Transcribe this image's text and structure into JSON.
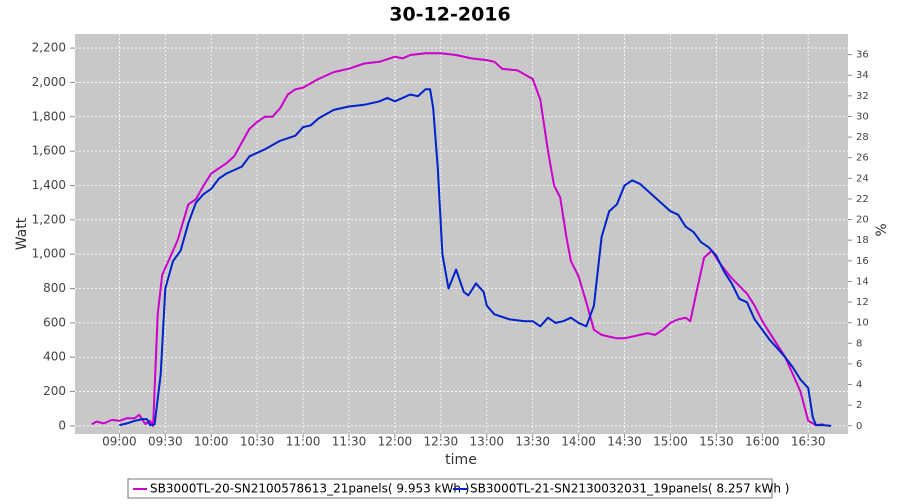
{
  "chart_data": {
    "type": "line",
    "title": "30-12-2016",
    "x_label": "time",
    "y_label": "Watt",
    "y2_label": "%",
    "xlim": [
      "08:31",
      "16:56"
    ],
    "xticks": [
      "09:00",
      "09:30",
      "10:00",
      "10:30",
      "11:00",
      "11:30",
      "12:00",
      "12:30",
      "13:00",
      "13:30",
      "14:00",
      "14:30",
      "15:00",
      "15:30",
      "16:00",
      "16:30"
    ],
    "ylim": [
      -47,
      2282
    ],
    "yticks": [
      0,
      200,
      400,
      600,
      800,
      {
        "value": 1000,
        "label": "1,000"
      },
      {
        "value": 1200,
        "label": "1,200"
      },
      {
        "value": 1400,
        "label": "1,400"
      },
      {
        "value": 1600,
        "label": "1,600"
      },
      {
        "value": 1800,
        "label": "1,800"
      },
      {
        "value": 2000,
        "label": "2,000"
      },
      {
        "value": 2200,
        "label": "2,200"
      }
    ],
    "y2lim": [
      -0.8,
      38
    ],
    "y2ticks": [
      0,
      2,
      4,
      6,
      8,
      10,
      12,
      14,
      16,
      18,
      20,
      22,
      24,
      26,
      28,
      30,
      32,
      34,
      36
    ],
    "grid": true,
    "legend": "bottom",
    "series": [
      {
        "name": "SB3000TL-20-SN2100578613_21panels( 9.953 kWh )",
        "color": "#cc00cc",
        "x": [
          "08:42",
          "08:45",
          "08:50",
          "08:55",
          "09:00",
          "09:05",
          "09:10",
          "09:13",
          "09:17",
          "09:20",
          "09:22",
          "09:25",
          "09:28",
          "09:32",
          "09:38",
          "09:45",
          "09:50",
          "09:55",
          "10:00",
          "10:10",
          "10:15",
          "10:20",
          "10:25",
          "10:30",
          "10:35",
          "10:40",
          "10:45",
          "10:50",
          "10:55",
          "11:00",
          "11:10",
          "11:20",
          "11:30",
          "11:40",
          "11:50",
          "12:00",
          "12:05",
          "12:10",
          "12:20",
          "12:30",
          "12:40",
          "12:50",
          "13:00",
          "13:05",
          "13:10",
          "13:20",
          "13:30",
          "13:35",
          "13:40",
          "13:44",
          "13:48",
          "13:52",
          "13:55",
          "14:00",
          "14:05",
          "14:10",
          "14:15",
          "14:20",
          "14:25",
          "14:30",
          "14:40",
          "14:45",
          "14:50",
          "14:55",
          "15:00",
          "15:05",
          "15:10",
          "15:13",
          "15:17",
          "15:22",
          "15:27",
          "15:32",
          "15:40",
          "15:50",
          "15:55",
          "16:00",
          "16:05",
          "16:10",
          "16:15",
          "16:20",
          "16:25",
          "16:30",
          "16:35",
          "16:40"
        ],
        "values": [
          10,
          25,
          15,
          35,
          30,
          45,
          45,
          65,
          10,
          30,
          0,
          650,
          880,
          960,
          1080,
          1290,
          1320,
          1400,
          1470,
          1530,
          1570,
          1650,
          1730,
          1770,
          1800,
          1800,
          1850,
          1930,
          1960,
          1970,
          2020,
          2060,
          2080,
          2110,
          2120,
          2150,
          2140,
          2160,
          2170,
          2170,
          2160,
          2140,
          2130,
          2120,
          2080,
          2070,
          2020,
          1900,
          1600,
          1400,
          1330,
          1100,
          960,
          870,
          720,
          560,
          530,
          520,
          510,
          510,
          530,
          540,
          530,
          560,
          600,
          620,
          630,
          610,
          780,
          980,
          1020,
          950,
          860,
          770,
          700,
          610,
          540,
          470,
          400,
          300,
          200,
          30,
          5,
          10
        ]
      },
      {
        "name": "SB3000TL-21-SN2130032031_19panels( 8.257 kWh )",
        "color": "#0022cc",
        "x": [
          "09:00",
          "09:05",
          "09:10",
          "09:15",
          "09:18",
          "09:20",
          "09:23",
          "09:27",
          "09:30",
          "09:35",
          "09:40",
          "09:45",
          "09:50",
          "09:55",
          "10:00",
          "10:05",
          "10:10",
          "10:20",
          "10:25",
          "10:35",
          "10:45",
          "10:55",
          "11:00",
          "11:05",
          "11:10",
          "11:20",
          "11:30",
          "11:40",
          "11:50",
          "11:55",
          "12:00",
          "12:05",
          "12:10",
          "12:15",
          "12:20",
          "12:23",
          "12:25",
          "12:28",
          "12:31",
          "12:35",
          "12:40",
          "12:45",
          "12:48",
          "12:53",
          "12:58",
          "13:00",
          "13:05",
          "13:15",
          "13:25",
          "13:30",
          "13:35",
          "13:40",
          "13:45",
          "13:50",
          "13:55",
          "14:00",
          "14:05",
          "14:10",
          "14:15",
          "14:20",
          "14:25",
          "14:30",
          "14:35",
          "14:40",
          "14:45",
          "14:55",
          "15:00",
          "15:05",
          "15:10",
          "15:15",
          "15:20",
          "15:25",
          "15:30",
          "15:35",
          "15:40",
          "15:45",
          "15:50",
          "15:55",
          "16:00",
          "16:05",
          "16:10",
          "16:15",
          "16:20",
          "16:25",
          "16:30",
          "16:33",
          "16:35",
          "16:40",
          "16:45"
        ],
        "values": [
          5,
          15,
          30,
          40,
          40,
          5,
          10,
          300,
          800,
          960,
          1020,
          1180,
          1300,
          1350,
          1380,
          1440,
          1470,
          1510,
          1570,
          1610,
          1660,
          1690,
          1740,
          1750,
          1790,
          1840,
          1860,
          1870,
          1890,
          1910,
          1890,
          1910,
          1930,
          1920,
          1960,
          1960,
          1850,
          1500,
          1000,
          800,
          910,
          780,
          760,
          830,
          780,
          700,
          650,
          620,
          610,
          610,
          580,
          630,
          600,
          610,
          630,
          600,
          580,
          700,
          1100,
          1250,
          1290,
          1400,
          1430,
          1410,
          1370,
          1290,
          1250,
          1230,
          1160,
          1130,
          1070,
          1040,
          990,
          900,
          830,
          740,
          720,
          620,
          560,
          500,
          450,
          400,
          340,
          270,
          220,
          50,
          5,
          5,
          0
        ]
      }
    ]
  }
}
